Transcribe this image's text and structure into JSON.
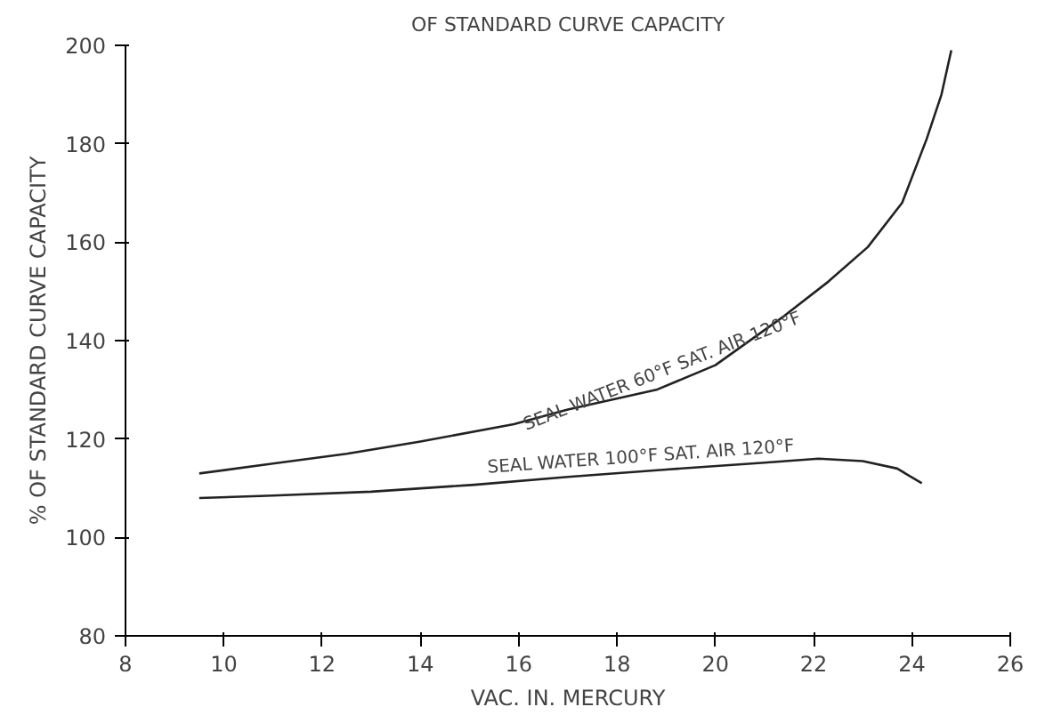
{
  "chart_data": {
    "type": "line",
    "title": "OF STANDARD CURVE CAPACITY",
    "xlabel": "VAC. IN. MERCURY",
    "ylabel": "% OF STANDARD CURVE CAPACITY",
    "xlim": [
      8,
      26
    ],
    "xticks": [
      8,
      10,
      12,
      14,
      16,
      18,
      20,
      22,
      24,
      26
    ],
    "ylim": [
      80,
      200
    ],
    "yticks": [
      80,
      100,
      120,
      140,
      160,
      180,
      200
    ],
    "grid": false,
    "marker": "none",
    "line_style": "solid",
    "series": [
      {
        "color": "#222222",
        "x": [
          9.5,
          11,
          12.5,
          14,
          15.9,
          17,
          18.8,
          20,
          21.4,
          22.3,
          23.1,
          23.8,
          24.3,
          24.6,
          24.8
        ],
        "values": [
          113,
          115,
          117,
          119.5,
          123,
          126,
          130,
          135,
          145,
          152,
          159,
          168,
          181,
          190,
          199
        ]
      },
      {
        "color": "#222222",
        "x": [
          9.5,
          11,
          13,
          15.1,
          17,
          19,
          21,
          22.1,
          23,
          23.7,
          24.2
        ],
        "values": [
          108,
          108.5,
          109.3,
          110.7,
          112.3,
          113.8,
          115.2,
          116,
          115.5,
          114,
          111
        ]
      }
    ],
    "annotations": [
      {
        "text": "SEAL WATER 60°F SAT. AIR 120°F",
        "x": 19,
        "y": 131
      },
      {
        "text": "SEAL WATER 100°F SAT. AIR 120°F",
        "x": 18.5,
        "y": 113.5
      }
    ]
  }
}
